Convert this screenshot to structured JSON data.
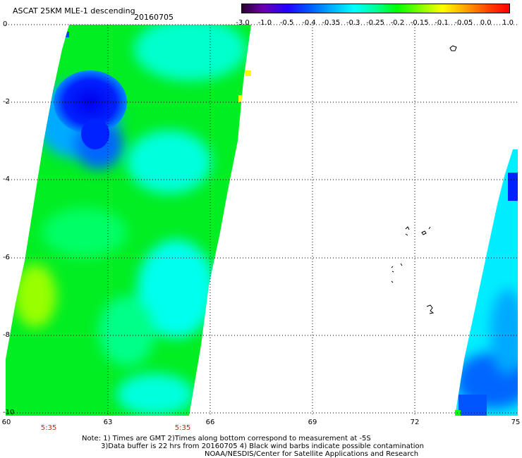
{
  "header": {
    "title": "ASCAT 25KM MLE-1 descending",
    "date": "20160705"
  },
  "colorbar": {
    "labels": [
      "-3.0",
      "-1.0",
      "-0.5",
      "-0.4",
      "-0.35",
      "-0.3",
      "-0.25",
      "-0.2",
      "-0.15",
      "-0.1",
      "-0.05",
      "0.0",
      "1.0"
    ],
    "colors": [
      "#2a0030",
      "#6a00b0",
      "#2200ff",
      "#0055ff",
      "#00aaff",
      "#00ffff",
      "#00ff99",
      "#00ff00",
      "#88ff00",
      "#ffff00",
      "#ffaa00",
      "#ff4400",
      "#ff0000"
    ]
  },
  "axes": {
    "y_labels": [
      "0",
      "-2",
      "-4",
      "-6",
      "-8",
      "-10"
    ],
    "x_labels": [
      "60",
      "63",
      "66",
      "69",
      "72",
      "75"
    ]
  },
  "times": [
    "5:35",
    "5:35"
  ],
  "notes": {
    "line1": "Note: 1) Times are GMT  2)Times along bottom correspond to measurement at -5S",
    "line2": "3)Data buffer is 22 hrs from 20160705  4) Black wind barbs indicate possible contamination",
    "line3": "NOAA/NESDIS/Center for Satellite Applications and Research"
  }
}
